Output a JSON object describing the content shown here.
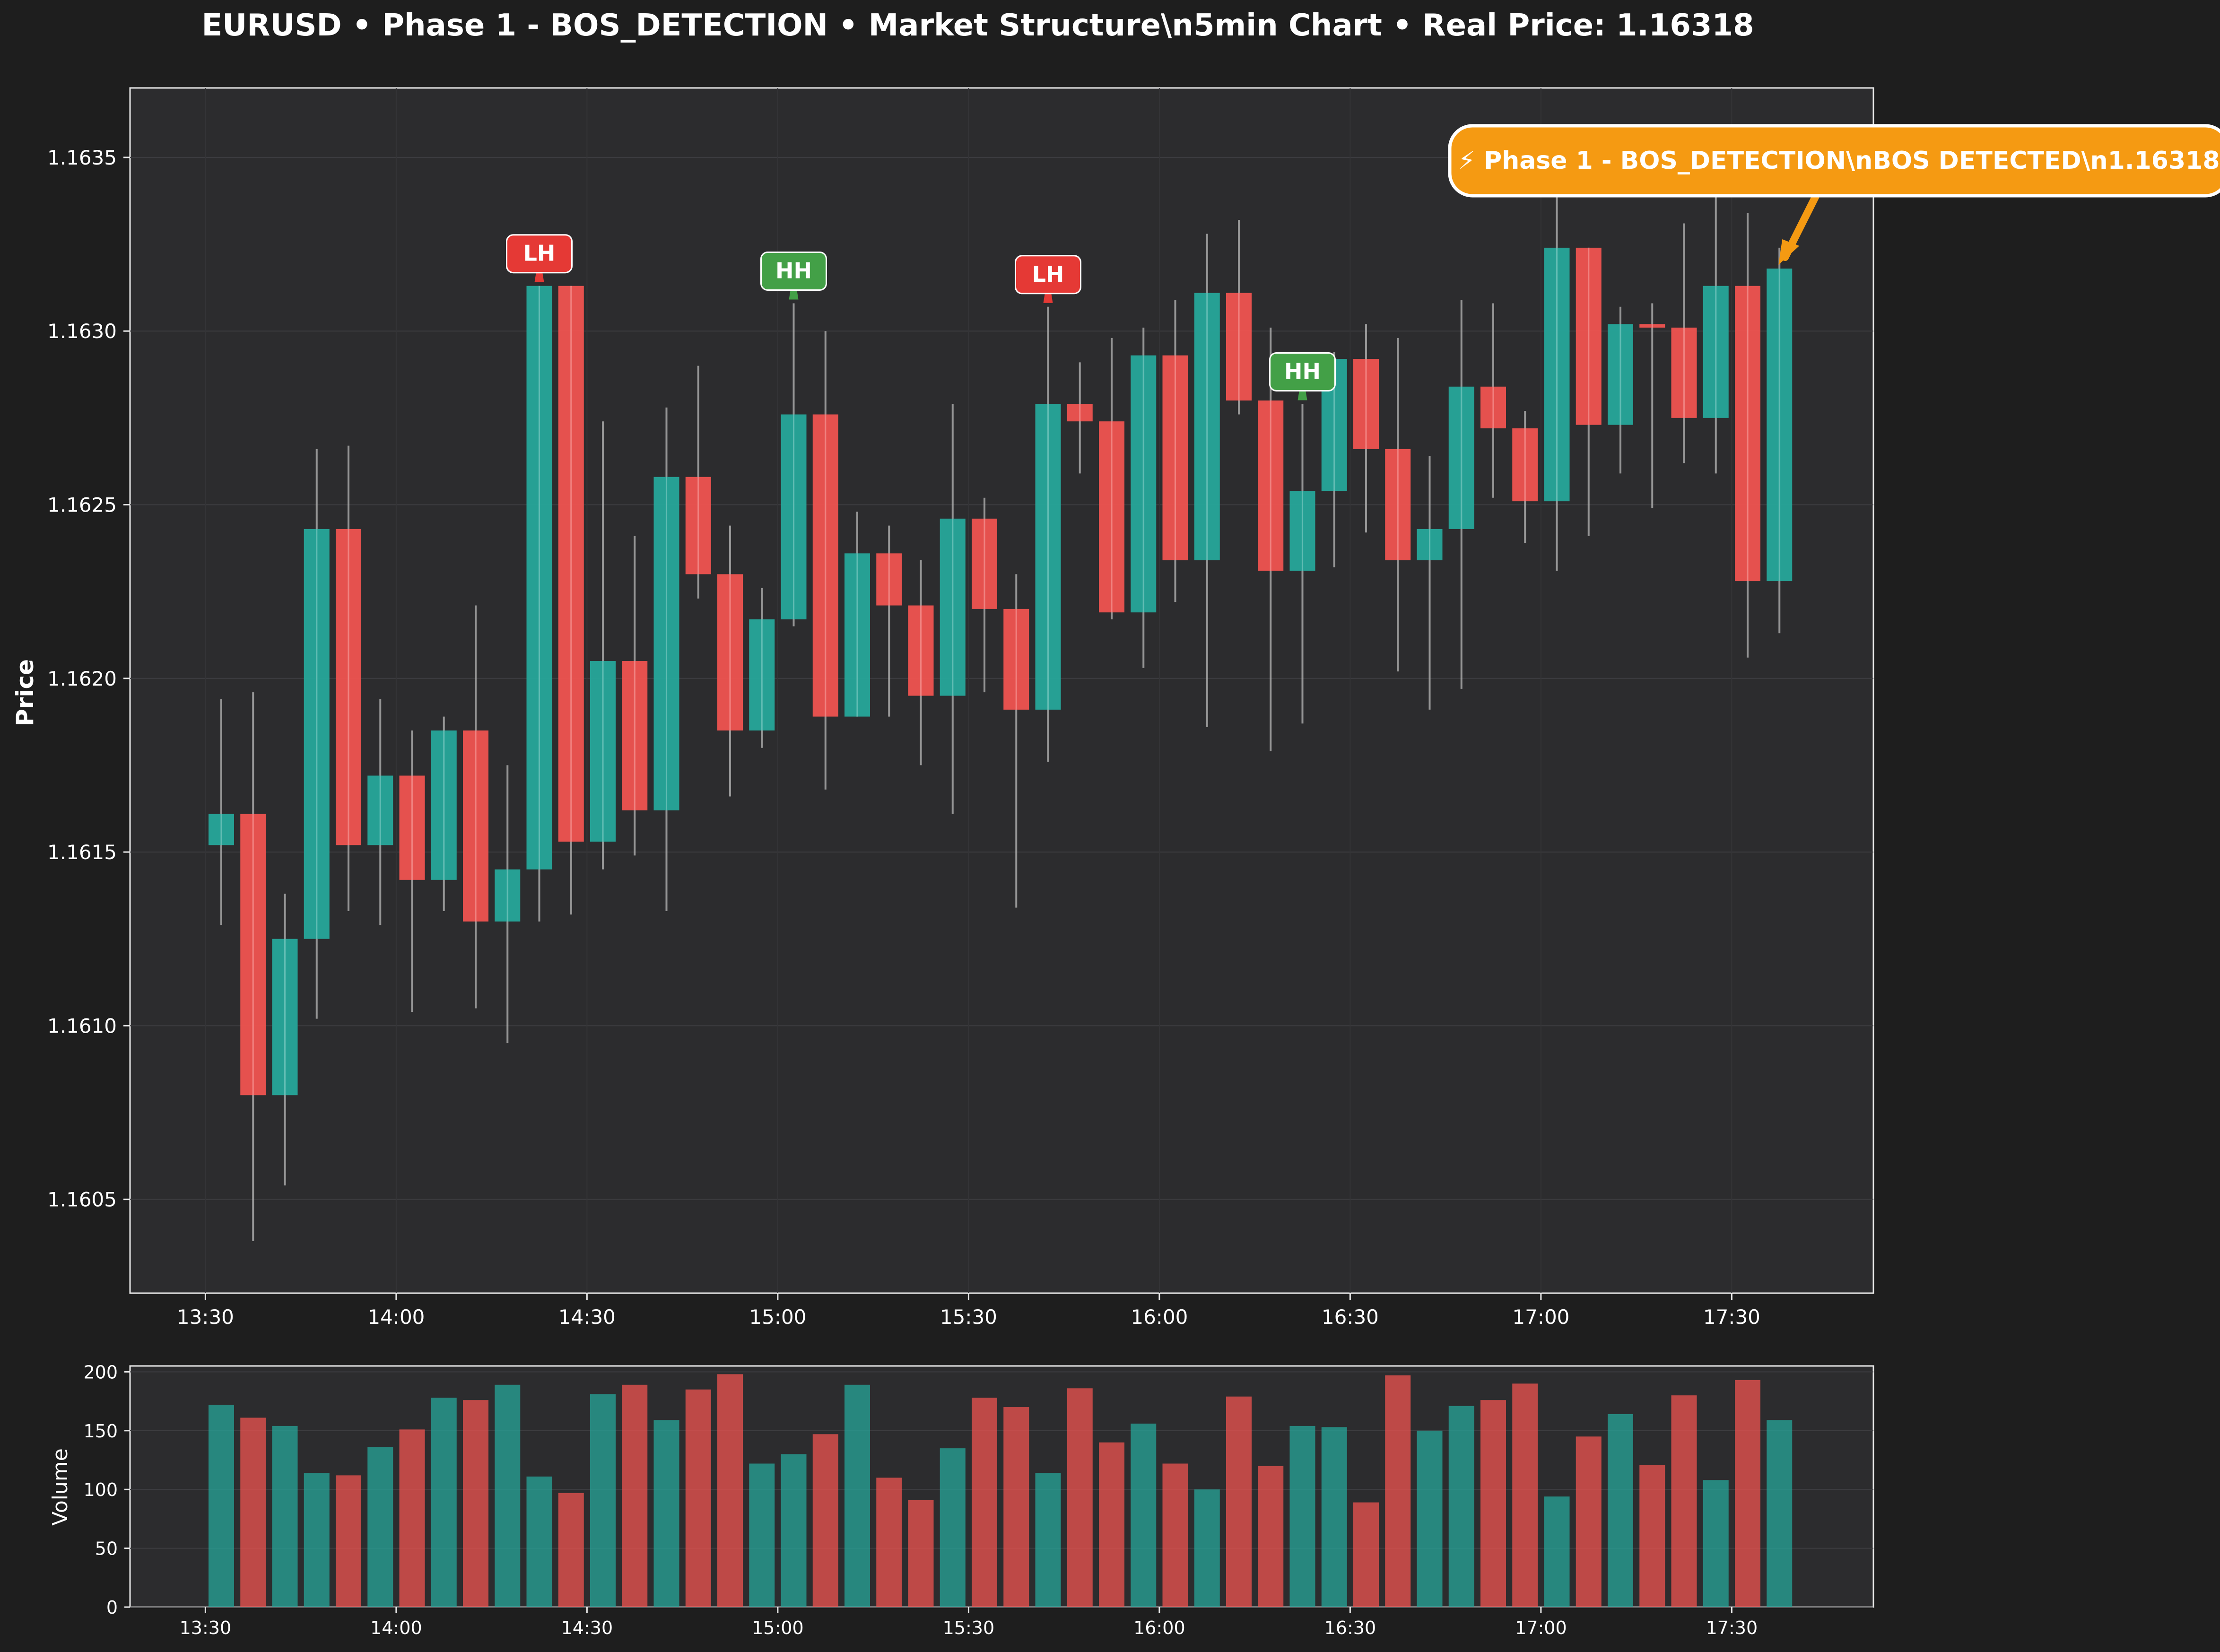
{
  "title": "EURUSD • Phase 1 - BOS_DETECTION • Market Structure\\n5min Chart • Real Price: 1.16318",
  "colors": {
    "background": "#1e1e1e",
    "panel": "#2c2c2e",
    "bull": "#26a69a",
    "bear": "#ef5350",
    "wick": "#b8b8b8",
    "text": "#ffffff",
    "label_green": "#43a047",
    "label_red": "#e53935",
    "callout": "#f59a12"
  },
  "chart_data": [
    {
      "type": "candlestick",
      "title": "EURUSD • Phase 1 - BOS_DETECTION • Market Structure\\n5min Chart • Real Price: 1.16318",
      "ylabel": "Price",
      "ylim": [
        1.16023,
        1.1637
      ],
      "yticks": [
        "1.1605",
        "1.1610",
        "1.1615",
        "1.1620",
        "1.1625",
        "1.1630",
        "1.1635"
      ],
      "ytick_values": [
        1.1605,
        1.161,
        1.1615,
        1.162,
        1.1625,
        1.163,
        1.1635
      ],
      "xticks": [
        "13:30",
        "14:00",
        "14:30",
        "15:00",
        "15:30",
        "16:00",
        "16:30",
        "17:00",
        "17:30"
      ],
      "xtick_index": [
        0,
        6,
        12,
        18,
        24,
        30,
        36,
        42,
        48
      ],
      "grid": true,
      "candles": [
        {
          "time": "13:35",
          "open": 1.16152,
          "high": 1.16194,
          "low": 1.16129,
          "close": 1.16161
        },
        {
          "time": "13:40",
          "open": 1.16161,
          "high": 1.16196,
          "low": 1.16038,
          "close": 1.1608
        },
        {
          "time": "13:45",
          "open": 1.1608,
          "high": 1.16138,
          "low": 1.16054,
          "close": 1.16125
        },
        {
          "time": "13:50",
          "open": 1.16125,
          "high": 1.16266,
          "low": 1.16102,
          "close": 1.16243
        },
        {
          "time": "13:55",
          "open": 1.16243,
          "high": 1.16267,
          "low": 1.16133,
          "close": 1.16152
        },
        {
          "time": "14:00",
          "open": 1.16152,
          "high": 1.16194,
          "low": 1.16129,
          "close": 1.16172
        },
        {
          "time": "14:05",
          "open": 1.16172,
          "high": 1.16185,
          "low": 1.16104,
          "close": 1.16142
        },
        {
          "time": "14:10",
          "open": 1.16142,
          "high": 1.16189,
          "low": 1.16133,
          "close": 1.16185
        },
        {
          "time": "14:15",
          "open": 1.16185,
          "high": 1.16221,
          "low": 1.16105,
          "close": 1.1613
        },
        {
          "time": "14:20",
          "open": 1.1613,
          "high": 1.16175,
          "low": 1.16095,
          "close": 1.16145
        },
        {
          "time": "14:25",
          "open": 1.16145,
          "high": 1.16313,
          "low": 1.1613,
          "close": 1.16313
        },
        {
          "time": "14:30",
          "open": 1.16313,
          "high": 1.16313,
          "low": 1.16132,
          "close": 1.16153
        },
        {
          "time": "14:35",
          "open": 1.16153,
          "high": 1.16274,
          "low": 1.16145,
          "close": 1.16205
        },
        {
          "time": "14:40",
          "open": 1.16205,
          "high": 1.16241,
          "low": 1.16149,
          "close": 1.16162
        },
        {
          "time": "14:45",
          "open": 1.16162,
          "high": 1.16278,
          "low": 1.16133,
          "close": 1.16258
        },
        {
          "time": "14:50",
          "open": 1.16258,
          "high": 1.1629,
          "low": 1.16223,
          "close": 1.1623
        },
        {
          "time": "14:55",
          "open": 1.1623,
          "high": 1.16244,
          "low": 1.16166,
          "close": 1.16185
        },
        {
          "time": "15:00",
          "open": 1.16185,
          "high": 1.16226,
          "low": 1.1618,
          "close": 1.16217
        },
        {
          "time": "15:05",
          "open": 1.16217,
          "high": 1.16308,
          "low": 1.16215,
          "close": 1.16276
        },
        {
          "time": "15:10",
          "open": 1.16276,
          "high": 1.163,
          "low": 1.16168,
          "close": 1.16189
        },
        {
          "time": "15:15",
          "open": 1.16189,
          "high": 1.16248,
          "low": 1.16189,
          "close": 1.16236
        },
        {
          "time": "15:20",
          "open": 1.16236,
          "high": 1.16244,
          "low": 1.16189,
          "close": 1.16221
        },
        {
          "time": "15:25",
          "open": 1.16221,
          "high": 1.16234,
          "low": 1.16175,
          "close": 1.16195
        },
        {
          "time": "15:30",
          "open": 1.16195,
          "high": 1.16279,
          "low": 1.16161,
          "close": 1.16246
        },
        {
          "time": "15:35",
          "open": 1.16246,
          "high": 1.16252,
          "low": 1.16196,
          "close": 1.1622
        },
        {
          "time": "15:40",
          "open": 1.1622,
          "high": 1.1623,
          "low": 1.16134,
          "close": 1.16191
        },
        {
          "time": "15:45",
          "open": 1.16191,
          "high": 1.16307,
          "low": 1.16176,
          "close": 1.16279
        },
        {
          "time": "15:50",
          "open": 1.16279,
          "high": 1.16291,
          "low": 1.16259,
          "close": 1.16274
        },
        {
          "time": "15:55",
          "open": 1.16274,
          "high": 1.16298,
          "low": 1.16217,
          "close": 1.16219
        },
        {
          "time": "16:00",
          "open": 1.16219,
          "high": 1.16301,
          "low": 1.16203,
          "close": 1.16293
        },
        {
          "time": "16:05",
          "open": 1.16293,
          "high": 1.16309,
          "low": 1.16222,
          "close": 1.16234
        },
        {
          "time": "16:10",
          "open": 1.16234,
          "high": 1.16328,
          "low": 1.16186,
          "close": 1.16311
        },
        {
          "time": "16:15",
          "open": 1.16311,
          "high": 1.16332,
          "low": 1.16276,
          "close": 1.1628
        },
        {
          "time": "16:20",
          "open": 1.1628,
          "high": 1.16301,
          "low": 1.16179,
          "close": 1.16231
        },
        {
          "time": "16:25",
          "open": 1.16231,
          "high": 1.16279,
          "low": 1.16187,
          "close": 1.16254
        },
        {
          "time": "16:30",
          "open": 1.16254,
          "high": 1.16294,
          "low": 1.16232,
          "close": 1.16292
        },
        {
          "time": "16:35",
          "open": 1.16292,
          "high": 1.16302,
          "low": 1.16242,
          "close": 1.16266
        },
        {
          "time": "16:40",
          "open": 1.16266,
          "high": 1.16298,
          "low": 1.16202,
          "close": 1.16234
        },
        {
          "time": "16:45",
          "open": 1.16234,
          "high": 1.16264,
          "low": 1.16191,
          "close": 1.16243
        },
        {
          "time": "16:50",
          "open": 1.16243,
          "high": 1.16309,
          "low": 1.16197,
          "close": 1.16284
        },
        {
          "time": "16:55",
          "open": 1.16284,
          "high": 1.16308,
          "low": 1.16252,
          "close": 1.16272
        },
        {
          "time": "17:00",
          "open": 1.16272,
          "high": 1.16277,
          "low": 1.16239,
          "close": 1.16251
        },
        {
          "time": "17:05",
          "open": 1.16251,
          "high": 1.16352,
          "low": 1.16231,
          "close": 1.16324
        },
        {
          "time": "17:10",
          "open": 1.16324,
          "high": 1.16324,
          "low": 1.16241,
          "close": 1.16273
        },
        {
          "time": "17:15",
          "open": 1.16273,
          "high": 1.16307,
          "low": 1.16259,
          "close": 1.16302
        },
        {
          "time": "17:20",
          "open": 1.16302,
          "high": 1.16308,
          "low": 1.16249,
          "close": 1.16301
        },
        {
          "time": "17:25",
          "open": 1.16301,
          "high": 1.16331,
          "low": 1.16262,
          "close": 1.16275
        },
        {
          "time": "17:30",
          "open": 1.16275,
          "high": 1.16348,
          "low": 1.16259,
          "close": 1.16313
        },
        {
          "time": "17:35",
          "open": 1.16313,
          "high": 1.16334,
          "low": 1.16206,
          "close": 1.16228
        },
        {
          "time": "17:40",
          "open": 1.16228,
          "high": 1.16324,
          "low": 1.16213,
          "close": 1.16318
        }
      ],
      "structure_labels": [
        {
          "text": "LH",
          "candle": 10,
          "price": 1.16313,
          "kind": "bear"
        },
        {
          "text": "HH",
          "candle": 18,
          "price": 1.16308,
          "kind": "bull"
        },
        {
          "text": "LH",
          "candle": 26,
          "price": 1.16307,
          "kind": "bear"
        },
        {
          "text": "HH",
          "candle": 34,
          "price": 1.16279,
          "kind": "bull"
        }
      ],
      "annotation": {
        "text": "⚡ Phase 1 - BOS_DETECTION\\nBOS DETECTED\\n1.16318",
        "candle": 49,
        "price": 1.16318
      }
    },
    {
      "type": "bar",
      "ylabel": "Volume",
      "ylim": [
        0,
        205
      ],
      "yticks": [
        "0",
        "50",
        "100",
        "150",
        "200"
      ],
      "ytick_values": [
        0,
        50,
        100,
        150,
        200
      ],
      "xticks": [
        "13:30",
        "14:00",
        "14:30",
        "15:00",
        "15:30",
        "16:00",
        "16:30",
        "17:00",
        "17:30"
      ],
      "xtick_index": [
        0,
        6,
        12,
        18,
        24,
        30,
        36,
        42,
        48
      ],
      "grid": true,
      "values": [
        172,
        161,
        154,
        114,
        112,
        136,
        151,
        178,
        176,
        189,
        111,
        97,
        181,
        189,
        159,
        185,
        198,
        122,
        130,
        147,
        189,
        110,
        91,
        135,
        178,
        170,
        114,
        186,
        140,
        156,
        122,
        100,
        179,
        120,
        154,
        153,
        89,
        197,
        150,
        171,
        176,
        190,
        94,
        145,
        164,
        121,
        180,
        108,
        193,
        159
      ]
    }
  ]
}
